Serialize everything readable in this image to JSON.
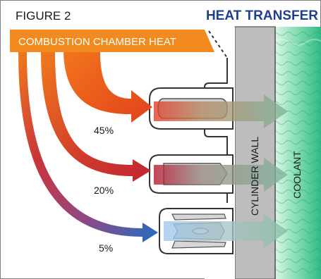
{
  "figure_label": "FIGURE 2",
  "title": "HEAT TRANSFER",
  "heat_source_label": "COMBUSTION CHAMBER HEAT",
  "wall_label": "CYLINDER WALL",
  "coolant_label": "COOLANT",
  "percent_top": "45%",
  "percent_middle": "20%",
  "percent_bottom": "5%",
  "colors": {
    "title": "#1f3f8c",
    "heat_band": "#f28a1f",
    "hot_arrow": "#e8501c",
    "warm_arrow": "#c8232b",
    "cool_arrow": "#1c66b3",
    "wall": "#bdbdbd",
    "coolant": "#3fc08a"
  }
}
